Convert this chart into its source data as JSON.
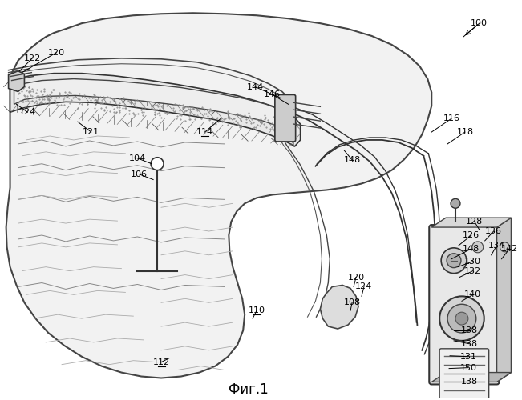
{
  "title": "Фиг.1",
  "bg": "#ffffff",
  "lc": "#000000",
  "fig_w": 6.51,
  "fig_h": 5.0,
  "dpi": 100
}
